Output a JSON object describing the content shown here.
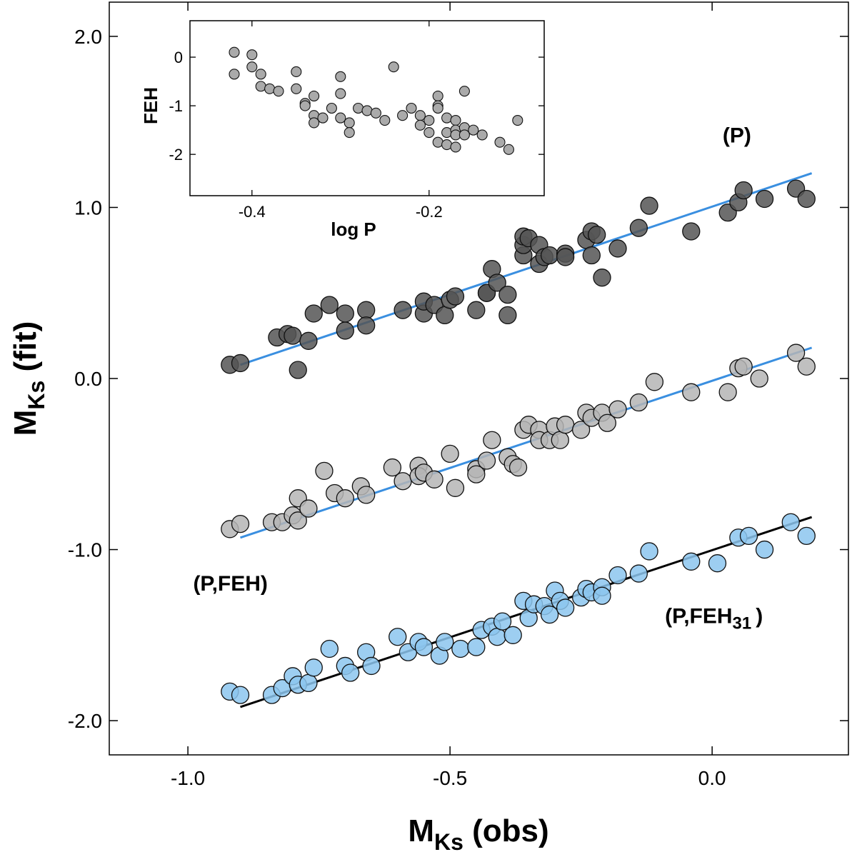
{
  "chart_data": [
    {
      "type": "scatter",
      "title": "",
      "xlabel": "M",
      "xlabel_sub": "Ks",
      "xlabel_suffix": " (obs)",
      "ylabel": "M",
      "ylabel_sub": "Ks",
      "ylabel_suffix": " (fit)",
      "xlim": [
        -1.15,
        0.26
      ],
      "ylim": [
        -2.2,
        2.2
      ],
      "xticks": [
        {
          "value": -1.0,
          "label": "-1.0"
        },
        {
          "value": -0.5,
          "label": "-0.5"
        },
        {
          "value": 0.0,
          "label": "0.0"
        }
      ],
      "yticks": [
        {
          "value": -2.0,
          "label": "-2.0"
        },
        {
          "value": -1.0,
          "label": "-1.0"
        },
        {
          "value": 0.0,
          "label": "0.0"
        },
        {
          "value": 1.0,
          "label": "1.0"
        },
        {
          "value": 2.0,
          "label": "2.0"
        }
      ],
      "grid": false,
      "annotations": [
        {
          "id": "p",
          "text": "(P)",
          "x": 0.02,
          "y": 1.38
        },
        {
          "id": "pfeh",
          "text": "(P,FEH)",
          "x": -0.99,
          "y": -1.24
        },
        {
          "id": "pfeh31",
          "text": "(P,FEH",
          "sub": "31",
          "suffix": ")",
          "x": -0.09,
          "y": -1.43
        }
      ],
      "series": [
        {
          "id": "series-p",
          "name": "(P)",
          "color": "#555555",
          "fit_color": "#3a8fe0",
          "fit": {
            "x": [
              -0.9,
              0.19
            ],
            "y": [
              0.08,
              1.2
            ]
          },
          "points": [
            [
              -0.92,
              0.08
            ],
            [
              -0.9,
              0.09
            ],
            [
              -0.83,
              0.24
            ],
            [
              -0.81,
              0.26
            ],
            [
              -0.8,
              0.25
            ],
            [
              -0.79,
              0.05
            ],
            [
              -0.77,
              0.22
            ],
            [
              -0.76,
              0.38
            ],
            [
              -0.73,
              0.43
            ],
            [
              -0.7,
              0.28
            ],
            [
              -0.7,
              0.38
            ],
            [
              -0.66,
              0.4
            ],
            [
              -0.66,
              0.31
            ],
            [
              -0.59,
              0.4
            ],
            [
              -0.55,
              0.38
            ],
            [
              -0.55,
              0.45
            ],
            [
              -0.53,
              0.43
            ],
            [
              -0.51,
              0.37
            ],
            [
              -0.5,
              0.46
            ],
            [
              -0.49,
              0.48
            ],
            [
              -0.45,
              0.4
            ],
            [
              -0.43,
              0.5
            ],
            [
              -0.43,
              0.5
            ],
            [
              -0.42,
              0.64
            ],
            [
              -0.41,
              0.56
            ],
            [
              -0.39,
              0.37
            ],
            [
              -0.39,
              0.49
            ],
            [
              -0.36,
              0.72
            ],
            [
              -0.36,
              0.78
            ],
            [
              -0.36,
              0.83
            ],
            [
              -0.35,
              0.82
            ],
            [
              -0.33,
              0.78
            ],
            [
              -0.33,
              0.67
            ],
            [
              -0.32,
              0.71
            ],
            [
              -0.31,
              0.72
            ],
            [
              -0.28,
              0.73
            ],
            [
              -0.28,
              0.71
            ],
            [
              -0.24,
              0.81
            ],
            [
              -0.23,
              0.86
            ],
            [
              -0.23,
              0.72
            ],
            [
              -0.22,
              0.84
            ],
            [
              -0.21,
              0.59
            ],
            [
              -0.18,
              0.76
            ],
            [
              -0.14,
              0.88
            ],
            [
              -0.12,
              1.01
            ],
            [
              -0.04,
              0.86
            ],
            [
              0.03,
              0.97
            ],
            [
              0.05,
              1.03
            ],
            [
              0.06,
              1.1
            ],
            [
              0.1,
              1.05
            ],
            [
              0.16,
              1.11
            ],
            [
              0.18,
              1.05
            ]
          ]
        },
        {
          "id": "series-pfeh",
          "name": "(P,FEH)",
          "color": "#b5b5b5",
          "fit_color": "#3a8fe0",
          "fit": {
            "x": [
              -0.9,
              0.19
            ],
            "y": [
              -0.93,
              0.18
            ]
          },
          "points": [
            [
              -0.92,
              -0.88
            ],
            [
              -0.9,
              -0.85
            ],
            [
              -0.84,
              -0.84
            ],
            [
              -0.82,
              -0.84
            ],
            [
              -0.8,
              -0.8
            ],
            [
              -0.79,
              -0.83
            ],
            [
              -0.79,
              -0.7
            ],
            [
              -0.77,
              -0.76
            ],
            [
              -0.74,
              -0.54
            ],
            [
              -0.72,
              -0.67
            ],
            [
              -0.7,
              -0.7
            ],
            [
              -0.67,
              -0.63
            ],
            [
              -0.66,
              -0.68
            ],
            [
              -0.61,
              -0.52
            ],
            [
              -0.59,
              -0.6
            ],
            [
              -0.56,
              -0.51
            ],
            [
              -0.56,
              -0.57
            ],
            [
              -0.55,
              -0.55
            ],
            [
              -0.53,
              -0.59
            ],
            [
              -0.5,
              -0.44
            ],
            [
              -0.49,
              -0.64
            ],
            [
              -0.45,
              -0.53
            ],
            [
              -0.45,
              -0.56
            ],
            [
              -0.43,
              -0.48
            ],
            [
              -0.42,
              -0.36
            ],
            [
              -0.39,
              -0.46
            ],
            [
              -0.38,
              -0.5
            ],
            [
              -0.37,
              -0.52
            ],
            [
              -0.36,
              -0.3
            ],
            [
              -0.35,
              -0.27
            ],
            [
              -0.33,
              -0.3
            ],
            [
              -0.33,
              -0.36
            ],
            [
              -0.31,
              -0.36
            ],
            [
              -0.3,
              -0.28
            ],
            [
              -0.29,
              -0.36
            ],
            [
              -0.28,
              -0.27
            ],
            [
              -0.25,
              -0.3
            ],
            [
              -0.24,
              -0.2
            ],
            [
              -0.23,
              -0.23
            ],
            [
              -0.21,
              -0.2
            ],
            [
              -0.2,
              -0.26
            ],
            [
              -0.18,
              -0.18
            ],
            [
              -0.14,
              -0.14
            ],
            [
              -0.11,
              -0.02
            ],
            [
              -0.04,
              -0.08
            ],
            [
              0.03,
              -0.08
            ],
            [
              0.05,
              0.06
            ],
            [
              0.06,
              0.07
            ],
            [
              0.09,
              0.0
            ],
            [
              0.16,
              0.15
            ],
            [
              0.18,
              0.07
            ]
          ]
        },
        {
          "id": "series-pfeh31",
          "name": "(P,FEH31)",
          "color": "#8cc6ef",
          "fit_color": "#000000",
          "fit": {
            "x": [
              -0.9,
              0.19
            ],
            "y": [
              -1.92,
              -0.81
            ]
          },
          "points": [
            [
              -0.92,
              -1.83
            ],
            [
              -0.9,
              -1.85
            ],
            [
              -0.84,
              -1.85
            ],
            [
              -0.82,
              -1.81
            ],
            [
              -0.8,
              -1.74
            ],
            [
              -0.79,
              -1.79
            ],
            [
              -0.77,
              -1.78
            ],
            [
              -0.76,
              -1.69
            ],
            [
              -0.73,
              -1.58
            ],
            [
              -0.7,
              -1.68
            ],
            [
              -0.69,
              -1.72
            ],
            [
              -0.66,
              -1.6
            ],
            [
              -0.65,
              -1.68
            ],
            [
              -0.6,
              -1.51
            ],
            [
              -0.58,
              -1.6
            ],
            [
              -0.56,
              -1.54
            ],
            [
              -0.55,
              -1.57
            ],
            [
              -0.52,
              -1.62
            ],
            [
              -0.51,
              -1.54
            ],
            [
              -0.48,
              -1.58
            ],
            [
              -0.45,
              -1.57
            ],
            [
              -0.44,
              -1.47
            ],
            [
              -0.42,
              -1.45
            ],
            [
              -0.41,
              -1.51
            ],
            [
              -0.4,
              -1.42
            ],
            [
              -0.38,
              -1.5
            ],
            [
              -0.36,
              -1.3
            ],
            [
              -0.35,
              -1.4
            ],
            [
              -0.34,
              -1.32
            ],
            [
              -0.32,
              -1.33
            ],
            [
              -0.31,
              -1.38
            ],
            [
              -0.3,
              -1.24
            ],
            [
              -0.29,
              -1.3
            ],
            [
              -0.28,
              -1.34
            ],
            [
              -0.25,
              -1.28
            ],
            [
              -0.24,
              -1.23
            ],
            [
              -0.23,
              -1.25
            ],
            [
              -0.21,
              -1.22
            ],
            [
              -0.21,
              -1.27
            ],
            [
              -0.18,
              -1.15
            ],
            [
              -0.14,
              -1.14
            ],
            [
              -0.12,
              -1.01
            ],
            [
              -0.04,
              -1.07
            ],
            [
              0.01,
              -1.08
            ],
            [
              0.05,
              -0.93
            ],
            [
              0.07,
              -0.92
            ],
            [
              0.1,
              -1.0
            ],
            [
              0.15,
              -0.84
            ],
            [
              0.18,
              -0.92
            ]
          ]
        }
      ]
    },
    {
      "type": "scatter",
      "title": "",
      "xlabel": "log P",
      "ylabel": "FEH",
      "xlim": [
        -0.47,
        -0.07
      ],
      "ylim": [
        -2.85,
        0.75
      ],
      "xticks": [
        {
          "value": -0.4,
          "label": "-0.4"
        },
        {
          "value": -0.2,
          "label": "-0.2"
        }
      ],
      "yticks": [
        {
          "value": -2,
          "label": "-2"
        },
        {
          "value": -1,
          "label": "-1"
        },
        {
          "value": 0,
          "label": "0"
        }
      ],
      "grid": false,
      "series": [
        {
          "id": "inset",
          "color": "#aaaaaa",
          "points": [
            [
              -0.42,
              0.1
            ],
            [
              -0.42,
              -0.35
            ],
            [
              -0.4,
              0.05
            ],
            [
              -0.4,
              -0.2
            ],
            [
              -0.39,
              -0.35
            ],
            [
              -0.39,
              -0.6
            ],
            [
              -0.38,
              -0.65
            ],
            [
              -0.37,
              -0.7
            ],
            [
              -0.35,
              -0.3
            ],
            [
              -0.35,
              -0.65
            ],
            [
              -0.34,
              -0.95
            ],
            [
              -0.34,
              -1.0
            ],
            [
              -0.33,
              -0.8
            ],
            [
              -0.33,
              -1.2
            ],
            [
              -0.33,
              -1.35
            ],
            [
              -0.32,
              -1.25
            ],
            [
              -0.31,
              -1.05
            ],
            [
              -0.3,
              -0.4
            ],
            [
              -0.3,
              -0.75
            ],
            [
              -0.3,
              -1.25
            ],
            [
              -0.29,
              -1.35
            ],
            [
              -0.29,
              -1.55
            ],
            [
              -0.28,
              -1.05
            ],
            [
              -0.27,
              -1.1
            ],
            [
              -0.26,
              -1.15
            ],
            [
              -0.25,
              -1.3
            ],
            [
              -0.24,
              -0.2
            ],
            [
              -0.23,
              -1.2
            ],
            [
              -0.22,
              -1.05
            ],
            [
              -0.21,
              -1.2
            ],
            [
              -0.21,
              -1.4
            ],
            [
              -0.2,
              -1.3
            ],
            [
              -0.2,
              -1.55
            ],
            [
              -0.19,
              -0.8
            ],
            [
              -0.19,
              -1.0
            ],
            [
              -0.19,
              -1.05
            ],
            [
              -0.19,
              -1.75
            ],
            [
              -0.18,
              -1.25
            ],
            [
              -0.18,
              -1.55
            ],
            [
              -0.18,
              -1.8
            ],
            [
              -0.17,
              -1.3
            ],
            [
              -0.17,
              -1.5
            ],
            [
              -0.17,
              -1.6
            ],
            [
              -0.17,
              -1.85
            ],
            [
              -0.16,
              -0.7
            ],
            [
              -0.16,
              -1.45
            ],
            [
              -0.16,
              -1.6
            ],
            [
              -0.15,
              -1.5
            ],
            [
              -0.14,
              -1.6
            ],
            [
              -0.12,
              -1.75
            ],
            [
              -0.11,
              -1.9
            ],
            [
              -0.1,
              -1.3
            ]
          ]
        }
      ]
    }
  ]
}
